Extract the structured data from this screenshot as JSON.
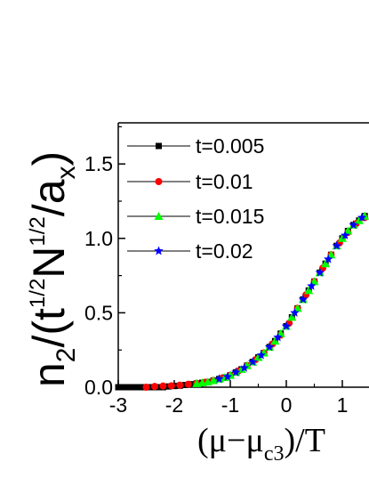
{
  "chart_data": {
    "type": "scatter",
    "ylabel": {
      "base": "n",
      "base_sub": "2",
      "open": "/(t",
      "t_sup": "1/2",
      "n": "N",
      "n_sup": "1/2",
      "slash_a": "/a",
      "a_sub": "x",
      "close": ")"
    },
    "xlabel": {
      "open": "(μ−μ",
      "sub": "c3",
      "close": ")/T"
    },
    "xlim": [
      -3,
      1.6
    ],
    "ylim": [
      0,
      1.8
    ],
    "x_ticks": [
      -3,
      -2,
      -1,
      0,
      1
    ],
    "x_tick_labels": [
      "-3",
      "-2",
      "-1",
      "0",
      "1"
    ],
    "y_ticks": [
      0,
      0.5,
      1.0,
      1.5
    ],
    "y_tick_labels": [
      "0.0",
      "0.5",
      "1.0",
      "1.5"
    ],
    "legend_position": "top-left",
    "series": [
      {
        "name": "t=0.005",
        "color": "#000000",
        "marker": "square",
        "x": [
          -3.0,
          -2.9,
          -2.8,
          -2.7,
          -2.6,
          -2.5,
          -2.4,
          -2.3,
          -2.2,
          -2.1,
          -2.0,
          -1.9,
          -1.8,
          -1.7,
          -1.6,
          -1.5,
          -1.4,
          -1.3,
          -1.2,
          -1.1,
          -1.0,
          -0.9,
          -0.8,
          -0.7,
          -0.6,
          -0.5,
          -0.4,
          -0.3,
          -0.2,
          -0.1,
          0.0,
          0.1,
          0.2,
          0.3,
          0.4,
          0.5,
          0.6,
          0.7,
          0.8,
          0.9,
          1.0,
          1.1,
          1.2,
          1.3,
          1.4,
          1.5,
          1.6
        ],
        "y": [
          0.0,
          0.0,
          0.0,
          0.0,
          0.0,
          0.0,
          0.0,
          0.0,
          0.0,
          0.005,
          0.008,
          0.01,
          0.015,
          0.02,
          0.025,
          0.03,
          0.035,
          0.045,
          0.055,
          0.065,
          0.08,
          0.1,
          0.12,
          0.145,
          0.17,
          0.2,
          0.23,
          0.27,
          0.31,
          0.36,
          0.41,
          0.47,
          0.53,
          0.59,
          0.65,
          0.71,
          0.77,
          0.83,
          0.89,
          0.95,
          1.0,
          1.05,
          1.09,
          1.12,
          1.15,
          1.17,
          1.19
        ]
      },
      {
        "name": "t=0.01",
        "color": "#ff0000",
        "marker": "circle",
        "x": [
          -2.5,
          -2.35,
          -2.2,
          -2.05,
          -1.9,
          -1.75,
          -1.6,
          -1.45,
          -1.3,
          -1.15,
          -1.0,
          -0.85,
          -0.7,
          -0.55,
          -0.4,
          -0.25,
          -0.1,
          0.05,
          0.2,
          0.35,
          0.5,
          0.65,
          0.8,
          0.95,
          1.1,
          1.25,
          1.4,
          1.55
        ],
        "y": [
          0.0,
          0.005,
          0.008,
          0.01,
          0.014,
          0.02,
          0.026,
          0.033,
          0.045,
          0.06,
          0.08,
          0.11,
          0.145,
          0.185,
          0.23,
          0.29,
          0.35,
          0.43,
          0.53,
          0.62,
          0.71,
          0.8,
          0.89,
          0.97,
          1.04,
          1.1,
          1.14,
          1.17
        ]
      },
      {
        "name": "t=0.015",
        "color": "#00ff00",
        "marker": "triangle",
        "x": [
          -1.6,
          -1.5,
          -1.4,
          -1.3,
          -1.2,
          -1.1,
          -1.0,
          -0.9,
          -0.8,
          -0.7,
          -0.6,
          -0.5,
          -0.4,
          -0.3,
          -0.2,
          -0.1,
          0.0,
          0.1,
          0.2,
          0.3,
          0.4,
          0.5,
          0.6,
          0.7,
          0.8,
          0.9,
          1.0,
          1.1,
          1.2,
          1.3,
          1.4,
          1.5
        ],
        "y": [
          0.025,
          0.03,
          0.035,
          0.045,
          0.055,
          0.065,
          0.08,
          0.1,
          0.12,
          0.145,
          0.17,
          0.2,
          0.23,
          0.27,
          0.31,
          0.36,
          0.41,
          0.47,
          0.53,
          0.59,
          0.65,
          0.71,
          0.77,
          0.83,
          0.89,
          0.95,
          1.0,
          1.05,
          1.09,
          1.12,
          1.15,
          1.17
        ]
      },
      {
        "name": "t=0.02",
        "color": "#0000ff",
        "marker": "star",
        "x": [
          -1.2,
          -1.05,
          -0.9,
          -0.75,
          -0.6,
          -0.45,
          -0.3,
          -0.15,
          0.0,
          0.15,
          0.3,
          0.45,
          0.6,
          0.75,
          0.9,
          1.05,
          1.2,
          1.35,
          1.5
        ],
        "y": [
          0.055,
          0.07,
          0.1,
          0.13,
          0.17,
          0.215,
          0.27,
          0.335,
          0.41,
          0.5,
          0.59,
          0.68,
          0.77,
          0.86,
          0.95,
          1.02,
          1.09,
          1.14,
          1.17
        ]
      }
    ]
  }
}
